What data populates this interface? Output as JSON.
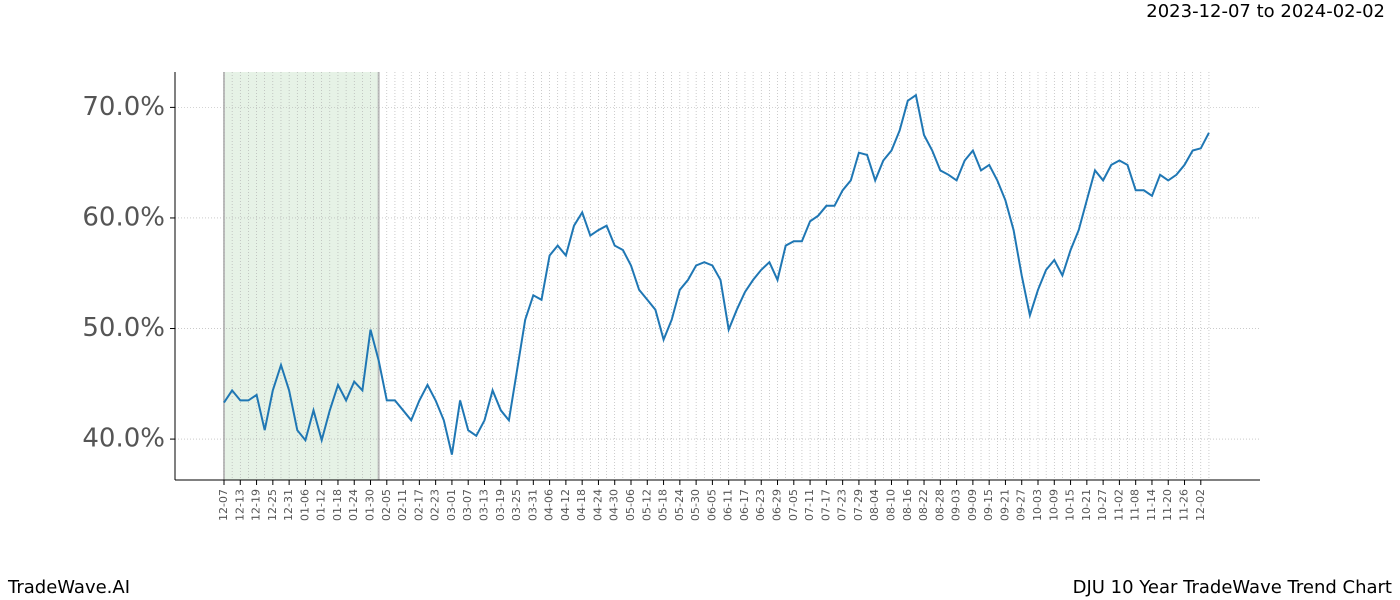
{
  "chart_data": {
    "type": "line",
    "subtitle": "2023-12-07 to 2024-02-02",
    "footer_left": "TradeWave.AI",
    "footer_right": "DJU 10 Year TradeWave Trend Chart",
    "categories": [
      "12-07",
      null,
      "12-13",
      null,
      "12-19",
      null,
      "12-25",
      null,
      "12-31",
      null,
      "01-06",
      null,
      "01-12",
      null,
      "01-18",
      null,
      "01-24",
      null,
      "01-30",
      null,
      "02-05",
      null,
      "02-11",
      null,
      "02-17",
      null,
      "02-23",
      null,
      "03-01",
      null,
      "03-07",
      null,
      "03-13",
      null,
      "03-19",
      null,
      "03-25",
      null,
      "03-31",
      null,
      "04-06",
      null,
      "04-12",
      null,
      "04-18",
      null,
      "04-24",
      null,
      "04-30",
      null,
      "05-06",
      null,
      "05-12",
      null,
      "05-18",
      null,
      "05-24",
      null,
      "05-30",
      null,
      "06-05",
      null,
      "06-11",
      null,
      "06-17",
      null,
      "06-23",
      null,
      "06-29",
      null,
      "07-05",
      null,
      "07-11",
      null,
      "07-17",
      null,
      "07-23",
      null,
      "07-29",
      null,
      "08-04",
      null,
      "08-10",
      null,
      "08-16",
      null,
      "08-22",
      null,
      "08-28",
      null,
      "09-03",
      null,
      "09-09",
      null,
      "09-15",
      null,
      "09-21",
      null,
      "09-27",
      null,
      "10-03",
      null,
      "10-09",
      null,
      "10-15",
      null,
      "10-21",
      null,
      "10-27",
      null,
      "11-02",
      null,
      "11-08",
      null,
      "11-14",
      null,
      "11-20",
      null,
      "11-26",
      null,
      "12-02",
      null
    ],
    "series": [
      {
        "color": "#1f77b4",
        "values": [
          43.3,
          44.4,
          43.5,
          43.5,
          44.0,
          40.8,
          44.4,
          46.7,
          44.4,
          40.8,
          39.9,
          42.6,
          39.9,
          42.6,
          44.9,
          43.5,
          45.2,
          44.4,
          49.9,
          47.1,
          43.5,
          43.5,
          42.6,
          41.7,
          43.5,
          44.9,
          43.5,
          41.7,
          38.6,
          43.5,
          40.8,
          40.3,
          41.7,
          44.4,
          42.6,
          41.7,
          46.2,
          50.8,
          53.0,
          52.6,
          56.6,
          57.5,
          56.6,
          59.3,
          60.5,
          58.4,
          58.9,
          59.3,
          57.5,
          57.1,
          55.7,
          53.5,
          52.6,
          51.7,
          49.0,
          50.8,
          53.5,
          54.4,
          55.7,
          56.0,
          55.7,
          54.4,
          49.9,
          51.7,
          53.3,
          54.4,
          55.3,
          56.0,
          54.4,
          57.5,
          57.9,
          57.9,
          59.7,
          60.2,
          61.1,
          61.1,
          62.5,
          63.4,
          65.9,
          65.7,
          63.4,
          65.2,
          66.1,
          67.9,
          70.6,
          71.1,
          67.5,
          66.1,
          64.3,
          63.9,
          63.4,
          65.2,
          66.1,
          64.3,
          64.8,
          63.4,
          61.6,
          58.9,
          54.8,
          51.2,
          53.5,
          55.3,
          56.2,
          54.8,
          57.1,
          58.9,
          61.6,
          64.3,
          63.4,
          64.8,
          65.2,
          64.8,
          62.5,
          62.5,
          62.0,
          63.9,
          63.4,
          63.9,
          64.8,
          66.1,
          66.3,
          67.7
        ]
      }
    ],
    "highlight": [
      0,
      19
    ],
    "highlight_color": "#e6f2e6",
    "ylim": [
      36.3,
      73.2
    ],
    "yticks": [
      {
        "value": 40,
        "label": "40.0%"
      },
      {
        "value": 50,
        "label": "50.0%"
      },
      {
        "value": 60,
        "label": "60.0%"
      },
      {
        "value": 70,
        "label": "70.0%"
      }
    ],
    "grid": true
  }
}
